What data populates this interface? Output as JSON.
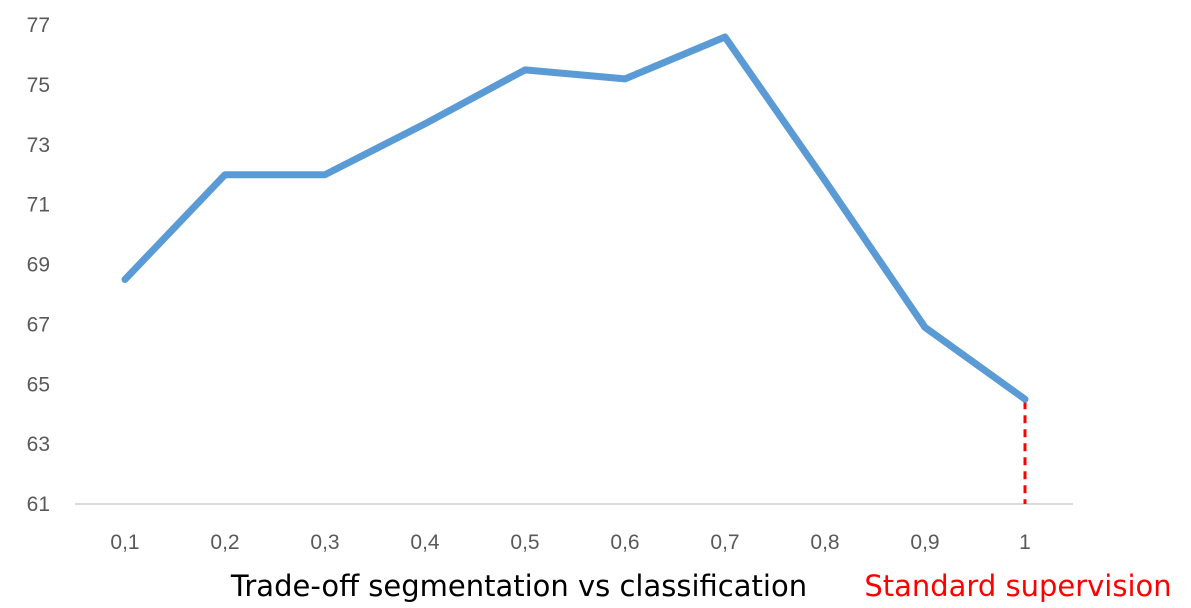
{
  "chart_data": {
    "type": "line",
    "title": "",
    "xlabel": "Trade-off segmentation vs classification",
    "ylabel": "",
    "categories": [
      "0,1",
      "0,2",
      "0,3",
      "0,4",
      "0,5",
      "0,6",
      "0,7",
      "0,8",
      "0,9",
      "1"
    ],
    "series": [
      {
        "color": "#5b9bd5",
        "values": [
          68.5,
          72.0,
          72.0,
          73.7,
          75.5,
          75.2,
          76.6,
          71.8,
          66.9,
          64.5
        ]
      }
    ],
    "ylim": [
      61,
      77
    ],
    "yticks": [
      61,
      63,
      65,
      67,
      69,
      71,
      73,
      75,
      77
    ],
    "grid": false,
    "legend": "none",
    "annotation": {
      "text": "Standard supervision",
      "color": "#ff0000",
      "category": "1",
      "dashed_drop_line": true
    }
  }
}
